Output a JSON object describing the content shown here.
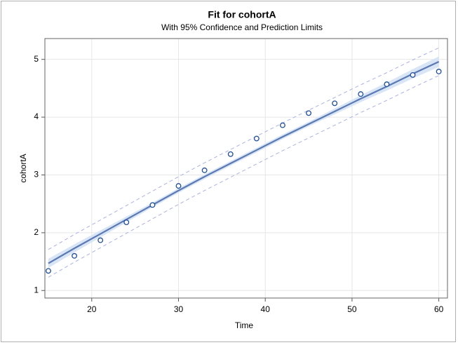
{
  "chart_data": {
    "type": "fit",
    "title": "Fit for cohortA",
    "subtitle": "With 95% Confidence and Prediction Limits",
    "x_label": "Time",
    "y_label": "cohortA",
    "x": [
      15,
      18,
      21,
      24,
      27,
      30,
      33,
      36,
      39,
      42,
      45,
      48,
      51,
      54,
      57,
      60
    ],
    "observed": [
      1.34,
      1.6,
      1.87,
      2.18,
      2.48,
      2.81,
      3.08,
      3.36,
      3.63,
      3.86,
      4.07,
      4.24,
      4.4,
      4.57,
      4.73,
      4.79
    ],
    "fit": [
      1.47,
      1.73,
      1.98,
      2.23,
      2.48,
      2.73,
      2.97,
      3.2,
      3.43,
      3.66,
      3.88,
      4.1,
      4.32,
      4.53,
      4.75,
      4.96
    ],
    "lcl": [
      1.39,
      1.66,
      1.92,
      2.18,
      2.44,
      2.69,
      2.93,
      3.16,
      3.39,
      3.62,
      3.84,
      4.05,
      4.26,
      4.46,
      4.67,
      4.87
    ],
    "ucl": [
      1.55,
      1.8,
      2.04,
      2.28,
      2.52,
      2.77,
      3.01,
      3.24,
      3.47,
      3.7,
      3.92,
      4.15,
      4.38,
      4.6,
      4.83,
      5.05
    ],
    "lpl": [
      1.23,
      1.49,
      1.74,
      1.99,
      2.24,
      2.49,
      2.73,
      2.96,
      3.19,
      3.42,
      3.64,
      3.86,
      4.08,
      4.29,
      4.51,
      4.72
    ],
    "upl": [
      1.71,
      1.97,
      2.22,
      2.47,
      2.72,
      2.97,
      3.21,
      3.44,
      3.67,
      3.9,
      4.12,
      4.34,
      4.56,
      4.77,
      4.99,
      5.2
    ],
    "xlim": [
      14.6,
      61
    ],
    "ylim": [
      0.87,
      5.36
    ],
    "xticks": [
      20,
      30,
      40,
      50,
      60
    ],
    "yticks": [
      1,
      2,
      3,
      4,
      5
    ],
    "grid": true,
    "point_color": "#1f4e9a",
    "fit_color": "#5b79b3",
    "band_color": "#d8e5f6",
    "limit_color": "#a9b1e6"
  }
}
